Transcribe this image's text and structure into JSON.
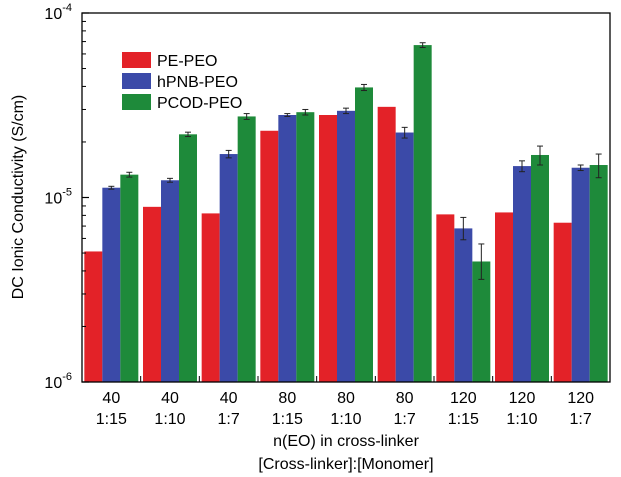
{
  "chart_data": {
    "type": "bar",
    "ylabel": "DC Ionic Conductivity (S/cm)",
    "xlabel_lines": [
      "n(EO) in cross-linker",
      "[Cross-linker]:[Monomer]"
    ],
    "yscale": "log",
    "ylim": [
      1e-06,
      0.0001
    ],
    "yticks": [
      {
        "value": 1e-06,
        "base": "10",
        "exp": "-6"
      },
      {
        "value": 1e-05,
        "base": "10",
        "exp": "-5"
      },
      {
        "value": 0.0001,
        "base": "10",
        "exp": "-4"
      }
    ],
    "categories": [
      {
        "line1": "40",
        "line2": "1:15"
      },
      {
        "line1": "40",
        "line2": "1:10"
      },
      {
        "line1": "40",
        "line2": "1:7"
      },
      {
        "line1": "80",
        "line2": "1:15"
      },
      {
        "line1": "80",
        "line2": "1:10"
      },
      {
        "line1": "80",
        "line2": "1:7"
      },
      {
        "line1": "120",
        "line2": "1:15"
      },
      {
        "line1": "120",
        "line2": "1:10"
      },
      {
        "line1": "120",
        "line2": "1:7"
      }
    ],
    "series": [
      {
        "name": "PE-PEO",
        "color": "#e32228",
        "values": [
          5.1e-06,
          8.9e-06,
          8.2e-06,
          2.3e-05,
          2.8e-05,
          3.1e-05,
          8.1e-06,
          8.3e-06,
          7.3e-06
        ],
        "errors": [
          null,
          null,
          null,
          null,
          null,
          null,
          null,
          null,
          null
        ]
      },
      {
        "name": "hPNB-PEO",
        "color": "#3b4aa8",
        "values": [
          1.13e-05,
          1.24e-05,
          1.72e-05,
          2.8e-05,
          2.95e-05,
          2.25e-05,
          6.8e-06,
          1.48e-05,
          1.45e-05
        ],
        "errors": [
          [
            1.11e-05,
            1.15e-05
          ],
          [
            1.21e-05,
            1.27e-05
          ],
          [
            1.64e-05,
            1.8e-05
          ],
          [
            2.75e-05,
            2.85e-05
          ],
          [
            2.85e-05,
            3.05e-05
          ],
          [
            2.1e-05,
            2.4e-05
          ],
          [
            5.9e-06,
            7.8e-06
          ],
          [
            1.38e-05,
            1.58e-05
          ],
          [
            1.4e-05,
            1.5e-05
          ]
        ]
      },
      {
        "name": "PCOD-PEO",
        "color": "#1e8a3a",
        "values": [
          1.33e-05,
          2.2e-05,
          2.75e-05,
          2.9e-05,
          3.95e-05,
          6.7e-05,
          4.5e-06,
          1.7e-05,
          1.5e-05
        ],
        "errors": [
          [
            1.29e-05,
            1.37e-05
          ],
          [
            2.14e-05,
            2.26e-05
          ],
          [
            2.65e-05,
            2.85e-05
          ],
          [
            2.8e-05,
            3e-05
          ],
          [
            3.8e-05,
            4.1e-05
          ],
          [
            6.5e-05,
            6.9e-05
          ],
          [
            3.6e-06,
            5.6e-06
          ],
          [
            1.5e-05,
            1.9e-05
          ],
          [
            1.28e-05,
            1.72e-05
          ]
        ]
      }
    ],
    "legend": {
      "position": "top-left"
    },
    "grid": false
  }
}
